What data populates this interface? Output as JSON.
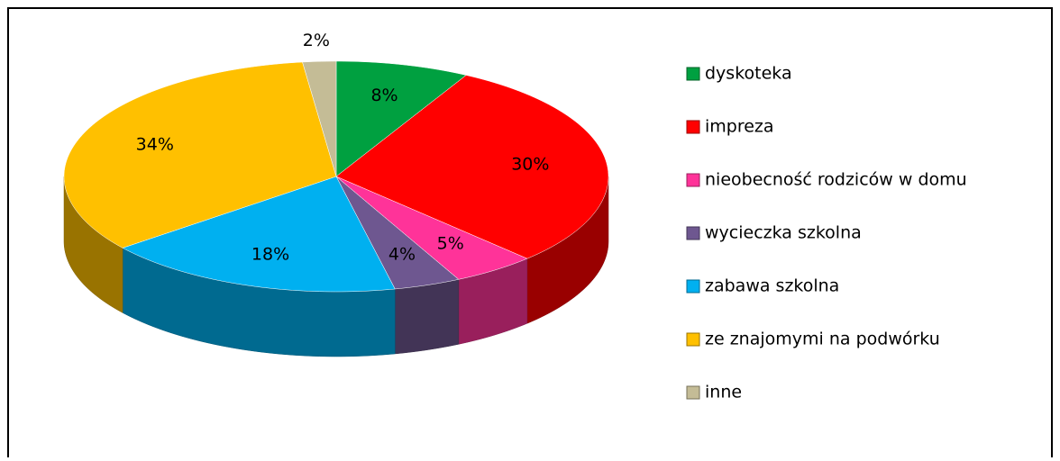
{
  "chart_data": {
    "type": "pie",
    "categories": [
      "dyskoteka",
      "impreza",
      "nieobecność rodziców w domu",
      "wycieczka szkolna",
      "zabawa szkolna",
      "ze znajomymi na podwórku",
      "inne"
    ],
    "values": [
      8,
      30,
      5,
      4,
      18,
      34,
      2
    ],
    "value_labels": [
      "8%",
      "30%",
      "5%",
      "4%",
      "18%",
      "34%",
      "2%"
    ],
    "colors": [
      "#00a040",
      "#ff0000",
      "#ff3399",
      "#6e5790",
      "#00b0f0",
      "#ffc000",
      "#c4bc96"
    ],
    "legend": "right"
  }
}
